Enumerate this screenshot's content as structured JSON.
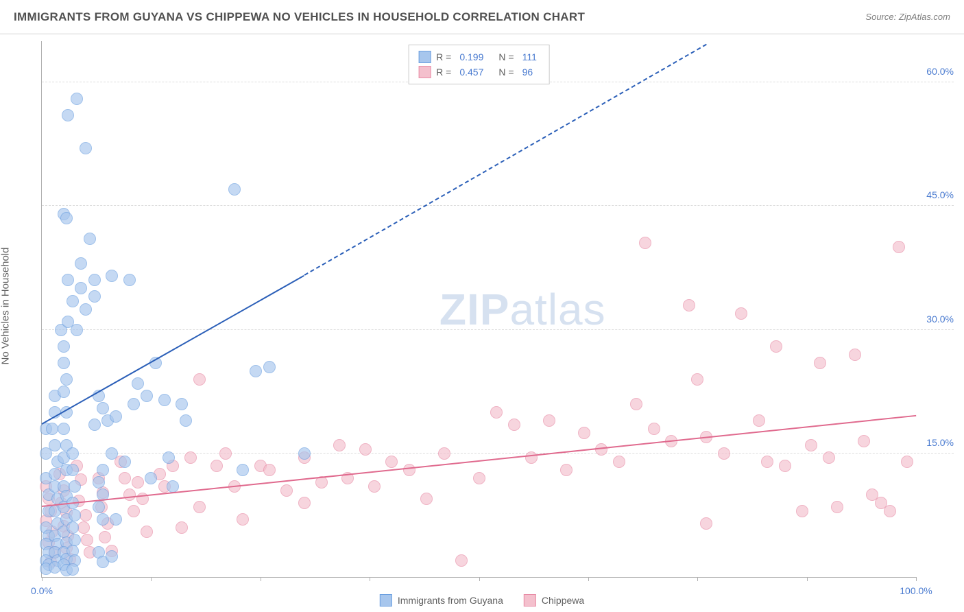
{
  "header": {
    "title": "IMMIGRANTS FROM GUYANA VS CHIPPEWA NO VEHICLES IN HOUSEHOLD CORRELATION CHART",
    "source_label": "Source:",
    "source_name": "ZipAtlas.com"
  },
  "chart": {
    "ylabel": "No Vehicles in Household",
    "xlim": [
      0,
      100
    ],
    "ylim": [
      0,
      65
    ],
    "yticks": [
      {
        "v": 15,
        "label": "15.0%"
      },
      {
        "v": 30,
        "label": "30.0%"
      },
      {
        "v": 45,
        "label": "45.0%"
      },
      {
        "v": 60,
        "label": "60.0%"
      }
    ],
    "xticks": [
      0,
      12.5,
      25,
      37.5,
      50,
      62.5,
      75,
      87.5,
      100
    ],
    "xtick_labels": {
      "0": "0.0%",
      "100": "100.0%"
    },
    "watermark": {
      "bold": "ZIP",
      "rest": "atlas"
    },
    "grid_color": "#dcdcdc",
    "axis_color": "#b0b0b0",
    "tick_label_color": "#4a7bd0"
  },
  "series": {
    "guyana": {
      "label": "Immigrants from Guyana",
      "R": "0.199",
      "N": "111",
      "marker_fill": "#a7c6ed",
      "marker_stroke": "#6b9fe0",
      "marker_opacity": 0.65,
      "marker_radius": 9,
      "line_color": "#2b5fb8",
      "trend": {
        "x1": 0,
        "y1": 18.5,
        "x2": 30,
        "y2": 36.5,
        "x2_dash": 76,
        "y2_dash": 64.5
      },
      "points": [
        [
          0.5,
          18
        ],
        [
          0.5,
          15
        ],
        [
          0.5,
          12
        ],
        [
          0.8,
          10
        ],
        [
          0.8,
          8
        ],
        [
          0.5,
          6
        ],
        [
          0.8,
          5
        ],
        [
          0.5,
          4
        ],
        [
          0.8,
          3
        ],
        [
          0.5,
          2
        ],
        [
          0.8,
          1.5
        ],
        [
          0.5,
          1
        ],
        [
          1.5,
          22
        ],
        [
          1.5,
          20
        ],
        [
          1.2,
          18
        ],
        [
          1.5,
          16
        ],
        [
          1.8,
          14
        ],
        [
          1.5,
          12.5
        ],
        [
          1.5,
          11
        ],
        [
          1.8,
          9.5
        ],
        [
          1.5,
          8
        ],
        [
          1.8,
          6.5
        ],
        [
          1.5,
          5
        ],
        [
          1.8,
          4
        ],
        [
          1.5,
          3
        ],
        [
          1.8,
          2
        ],
        [
          1.5,
          1.2
        ],
        [
          2.2,
          30
        ],
        [
          2.5,
          28
        ],
        [
          2.5,
          26
        ],
        [
          2.8,
          24
        ],
        [
          2.5,
          22.5
        ],
        [
          2.8,
          20
        ],
        [
          2.5,
          18
        ],
        [
          2.8,
          16
        ],
        [
          2.5,
          14.5
        ],
        [
          2.8,
          13
        ],
        [
          2.5,
          11
        ],
        [
          2.8,
          9.8
        ],
        [
          2.5,
          8.5
        ],
        [
          2.8,
          7
        ],
        [
          2.5,
          5.5
        ],
        [
          2.8,
          4.2
        ],
        [
          2.5,
          3
        ],
        [
          2.8,
          2.2
        ],
        [
          2.5,
          1.5
        ],
        [
          2.8,
          0.8
        ],
        [
          3.5,
          15
        ],
        [
          3.5,
          13
        ],
        [
          3.8,
          11
        ],
        [
          3.5,
          9
        ],
        [
          3.8,
          7.5
        ],
        [
          3.5,
          6
        ],
        [
          3.8,
          4.5
        ],
        [
          3.5,
          3.2
        ],
        [
          3.8,
          2
        ],
        [
          3.5,
          0.9
        ],
        [
          4,
          58
        ],
        [
          3,
          56
        ],
        [
          5,
          52
        ],
        [
          2.5,
          44
        ],
        [
          2.8,
          43.5
        ],
        [
          5.5,
          41
        ],
        [
          4.5,
          38
        ],
        [
          3,
          36
        ],
        [
          4.5,
          35
        ],
        [
          3.5,
          33.5
        ],
        [
          5,
          32.5
        ],
        [
          3,
          31
        ],
        [
          4,
          30
        ],
        [
          6,
          36
        ],
        [
          6,
          34
        ],
        [
          6.5,
          22
        ],
        [
          7,
          20.5
        ],
        [
          7.5,
          19
        ],
        [
          6,
          18.5
        ],
        [
          7,
          13
        ],
        [
          6.5,
          11.5
        ],
        [
          7,
          10
        ],
        [
          6.5,
          8.5
        ],
        [
          7,
          7
        ],
        [
          6.5,
          3
        ],
        [
          7,
          1.8
        ],
        [
          8,
          36.5
        ],
        [
          8.5,
          19.5
        ],
        [
          8,
          15
        ],
        [
          8.5,
          7
        ],
        [
          8,
          2.5
        ],
        [
          9.5,
          14
        ],
        [
          10,
          36
        ],
        [
          10.5,
          21
        ],
        [
          11,
          23.5
        ],
        [
          12,
          22
        ],
        [
          12.5,
          12
        ],
        [
          13,
          26
        ],
        [
          14,
          21.5
        ],
        [
          14.5,
          14.5
        ],
        [
          15,
          11
        ],
        [
          16,
          21
        ],
        [
          16.5,
          19
        ],
        [
          22,
          47
        ],
        [
          23,
          13
        ],
        [
          24.5,
          25
        ],
        [
          26,
          25.5
        ],
        [
          30,
          15
        ]
      ]
    },
    "chippewa": {
      "label": "Chippewa",
      "R": "0.457",
      "N": "96",
      "marker_fill": "#f4c0cd",
      "marker_stroke": "#e88ba5",
      "marker_opacity": 0.65,
      "marker_radius": 9,
      "line_color": "#e06a8e",
      "trend": {
        "x1": 0,
        "y1": 8.5,
        "x2": 100,
        "y2": 19.5
      },
      "points": [
        [
          0.5,
          11
        ],
        [
          0.8,
          9.5
        ],
        [
          1,
          8
        ],
        [
          0.5,
          6.8
        ],
        [
          1.2,
          5.5
        ],
        [
          0.8,
          4.2
        ],
        [
          1.5,
          3
        ],
        [
          1,
          1.8
        ],
        [
          2,
          12.5
        ],
        [
          2.5,
          10.5
        ],
        [
          2.2,
          9
        ],
        [
          2.8,
          7.8
        ],
        [
          2.5,
          6.2
        ],
        [
          3,
          5
        ],
        [
          2.8,
          3.5
        ],
        [
          3.2,
          2.2
        ],
        [
          4,
          13.5
        ],
        [
          4.5,
          11.8
        ],
        [
          4.2,
          9.2
        ],
        [
          5,
          7.5
        ],
        [
          4.8,
          6
        ],
        [
          5.2,
          4.5
        ],
        [
          5.5,
          3
        ],
        [
          6.5,
          12
        ],
        [
          7,
          10.2
        ],
        [
          6.8,
          8.5
        ],
        [
          7.5,
          6.5
        ],
        [
          7.2,
          4.8
        ],
        [
          8,
          3.2
        ],
        [
          9,
          14
        ],
        [
          9.5,
          12
        ],
        [
          10,
          10
        ],
        [
          10.5,
          8
        ],
        [
          11,
          11.5
        ],
        [
          11.5,
          9.5
        ],
        [
          12,
          5.5
        ],
        [
          13.5,
          12.5
        ],
        [
          14,
          11
        ],
        [
          15,
          13.5
        ],
        [
          16,
          6
        ],
        [
          17,
          14.5
        ],
        [
          18,
          24
        ],
        [
          18,
          8.5
        ],
        [
          20,
          13.5
        ],
        [
          21,
          15
        ],
        [
          22,
          11
        ],
        [
          23,
          7
        ],
        [
          25,
          13.5
        ],
        [
          26,
          13
        ],
        [
          28,
          10.5
        ],
        [
          30,
          14.5
        ],
        [
          30,
          9
        ],
        [
          32,
          11.5
        ],
        [
          34,
          16
        ],
        [
          35,
          12
        ],
        [
          37,
          15.5
        ],
        [
          38,
          11
        ],
        [
          40,
          14
        ],
        [
          42,
          13
        ],
        [
          44,
          9.5
        ],
        [
          46,
          15
        ],
        [
          48,
          2
        ],
        [
          50,
          12
        ],
        [
          52,
          20
        ],
        [
          54,
          18.5
        ],
        [
          56,
          14.5
        ],
        [
          58,
          19
        ],
        [
          60,
          13
        ],
        [
          62,
          17.5
        ],
        [
          64,
          15.5
        ],
        [
          66,
          14
        ],
        [
          68,
          21
        ],
        [
          69,
          40.5
        ],
        [
          70,
          18
        ],
        [
          72,
          16.5
        ],
        [
          74,
          33
        ],
        [
          75,
          24
        ],
        [
          76,
          6.5
        ],
        [
          76,
          17
        ],
        [
          78,
          15
        ],
        [
          80,
          32
        ],
        [
          82,
          19
        ],
        [
          83,
          14
        ],
        [
          84,
          28
        ],
        [
          85,
          13.5
        ],
        [
          87,
          8
        ],
        [
          88,
          16
        ],
        [
          89,
          26
        ],
        [
          90,
          14.5
        ],
        [
          91,
          8.5
        ],
        [
          93,
          27
        ],
        [
          94,
          16.5
        ],
        [
          95,
          10
        ],
        [
          96,
          9
        ],
        [
          97,
          8
        ],
        [
          98,
          40
        ],
        [
          99,
          14
        ]
      ]
    }
  },
  "legend_top": {
    "R_label": "R  =",
    "N_label": "N  ="
  },
  "legend_bottom": {}
}
